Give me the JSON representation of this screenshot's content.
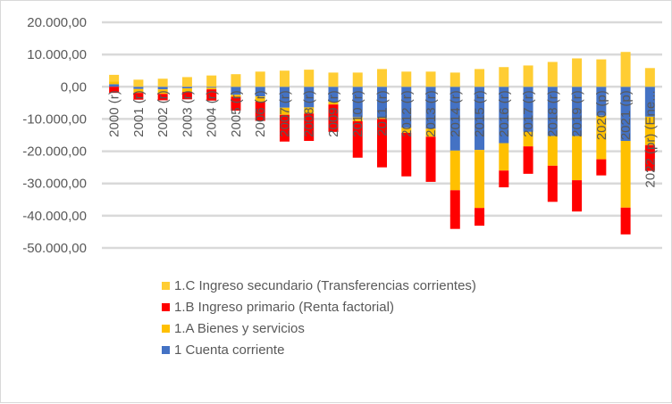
{
  "chart_data": {
    "type": "bar",
    "stacked": true,
    "title": "",
    "xlabel": "",
    "ylabel": "",
    "ylim": [
      -50000,
      20000
    ],
    "y_ticks": [
      20000,
      10000,
      0,
      -10000,
      -20000,
      -30000,
      -40000,
      -50000
    ],
    "y_tick_labels": [
      "20.000,00",
      "10.000,00",
      "0,00",
      "-10.000,00",
      "-20.000,00",
      "-30.000,00",
      "-40.000,00",
      "-50.000,00"
    ],
    "grid": true,
    "legend_position": "bottom",
    "categories": [
      "2000 (r)",
      "2001 (r)",
      "2002 (r)",
      "2003 (r)",
      "2004 (r)",
      "2005 (r)",
      "2006 (r)",
      "2007 (r)",
      "2008 (r)",
      "2009 (r)",
      "2010 (r)",
      "2011 (r)",
      "2012 (r)",
      "2013 (r)",
      "2014 (r)",
      "2015 (r)",
      "2016 (r)",
      "2017 (r)",
      "2018 (r)",
      "2019 (r)",
      "2020 (p)",
      "2021 (p)",
      "2022 (pr) (Ene..."
    ],
    "series": [
      {
        "name": "1 Cuenta corriente",
        "color": "#4472c4",
        "values": [
          800,
          -700,
          -800,
          -500,
          -300,
          -2500,
          -3000,
          -6500,
          -6400,
          -4700,
          -9500,
          -9700,
          -12700,
          -13000,
          -19800,
          -19600,
          -17500,
          -14000,
          -15300,
          -15300,
          -9000,
          -16800,
          -9300
        ]
      },
      {
        "name": "1.A Bienes y servicios",
        "color": "#ffc000",
        "values": [
          900,
          -1200,
          -1400,
          -1100,
          -500,
          -600,
          -1600,
          -2200,
          -1900,
          -800,
          -1200,
          -300,
          -1600,
          -2500,
          -12300,
          -18000,
          -8500,
          -4500,
          -9200,
          -13700,
          -13500,
          -20700,
          -8800
        ]
      },
      {
        "name": "1.B Ingreso primario (Renta factorial)",
        "color": "#ff0000",
        "values": [
          -1900,
          -2100,
          -2000,
          -2300,
          -3500,
          -4300,
          -6000,
          -8300,
          -8500,
          -8500,
          -11300,
          -15000,
          -13500,
          -14000,
          -12000,
          -5500,
          -5200,
          -8500,
          -11200,
          -9700,
          -5000,
          -8300,
          -8000
        ]
      },
      {
        "name": "1.C Ingreso secundario (Transferencias corrientes)",
        "color": "#ffcd33",
        "values": [
          2000,
          2200,
          2500,
          3000,
          3500,
          3900,
          4700,
          5000,
          5300,
          4400,
          4400,
          5500,
          4700,
          4700,
          4400,
          5500,
          6100,
          6600,
          7700,
          8800,
          8500,
          10800,
          5800
        ]
      }
    ],
    "legend_order": [
      3,
      2,
      1,
      0
    ]
  }
}
